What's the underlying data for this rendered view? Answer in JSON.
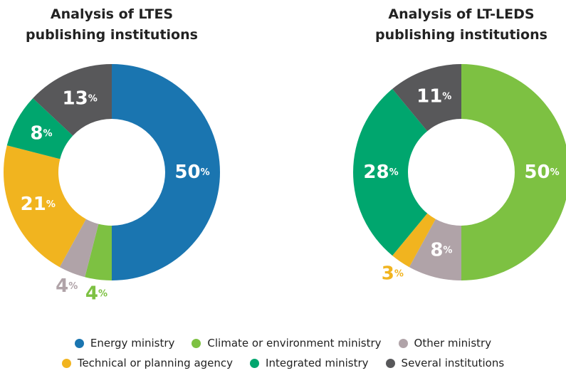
{
  "chart_data": [
    {
      "type": "donut",
      "title": "Analysis of LTES publishing institutions",
      "categories": [
        "Energy ministry",
        "Climate or environment ministry",
        "Other ministry",
        "Technical or planning agency",
        "Integrated ministry",
        "Several institutions"
      ],
      "values": [
        50,
        4,
        4,
        21,
        8,
        13
      ],
      "value_labels": [
        "50%",
        "4%",
        "4%",
        "21%",
        "8%",
        "13%"
      ],
      "colors": [
        "#1a75b0",
        "#7dc142",
        "#b0a3a8",
        "#f1b41f",
        "#00a66e",
        "#58585a"
      ]
    },
    {
      "type": "donut",
      "title": "Analysis of LT-LEDS publishing institutions",
      "categories": [
        "Climate or environment ministry",
        "Other ministry",
        "Technical or planning agency",
        "Integrated ministry",
        "Several institutions"
      ],
      "values": [
        50,
        8,
        3,
        28,
        11
      ],
      "value_labels": [
        "50%",
        "8%",
        "3%",
        "28%",
        "11%"
      ],
      "colors": [
        "#7dc142",
        "#b0a3a8",
        "#f1b41f",
        "#00a66e",
        "#58585a"
      ]
    }
  ],
  "legend": [
    {
      "name": "Energy ministry",
      "color": "#1a75b0"
    },
    {
      "name": "Climate or environment ministry",
      "color": "#7dc142"
    },
    {
      "name": "Other ministry",
      "color": "#b0a3a8"
    },
    {
      "name": "Technical or planning agency",
      "color": "#f1b41f"
    },
    {
      "name": "Integrated ministry",
      "color": "#00a66e"
    },
    {
      "name": "Several institutions",
      "color": "#58585a"
    }
  ]
}
